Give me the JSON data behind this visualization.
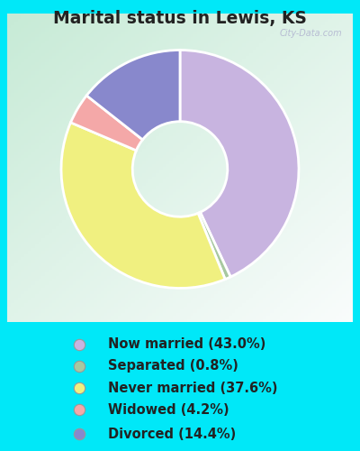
{
  "title": "Marital status in Lewis, KS",
  "slices": [
    43.0,
    0.8,
    37.6,
    4.2,
    14.4
  ],
  "labels": [
    "Now married (43.0%)",
    "Separated (0.8%)",
    "Never married (37.6%)",
    "Widowed (4.2%)",
    "Divorced (14.4%)"
  ],
  "colors": [
    "#c8b4e0",
    "#a8c8a0",
    "#f0f080",
    "#f4a8a8",
    "#8888cc"
  ],
  "bg_outer": "#00e8f8",
  "title_color": "#222222",
  "title_fontsize": 13.5,
  "legend_fontsize": 10.5,
  "watermark": "City-Data.com",
  "donut_width": 0.6,
  "startangle": 90,
  "chart_bg_colors": [
    "#c8e8d8",
    "#eef8f4"
  ],
  "legend_circle_size": 80
}
